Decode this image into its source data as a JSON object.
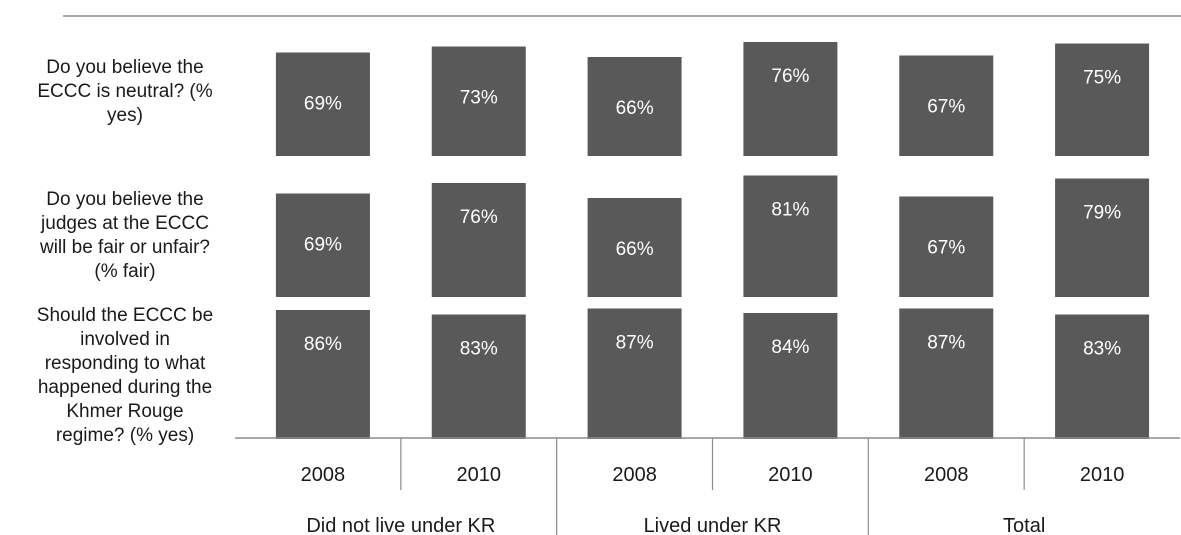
{
  "chart_data": {
    "type": "bar",
    "rows": [
      {
        "label_lines": [
          "Do you believe the",
          "ECCC is neutral? (%",
          "yes)"
        ],
        "values": [
          69,
          73,
          66,
          76,
          67,
          75
        ],
        "value_labels": [
          "69%",
          "73%",
          "66%",
          "76%",
          "67%",
          "75%"
        ]
      },
      {
        "label_lines": [
          "Do you believe the",
          "judges at the ECCC",
          "will be fair or unfair?",
          "(% fair)"
        ],
        "values": [
          69,
          76,
          66,
          81,
          67,
          79
        ],
        "value_labels": [
          "69%",
          "76%",
          "66%",
          "81%",
          "67%",
          "79%"
        ]
      },
      {
        "label_lines": [
          "Should the ECCC be",
          "involved in",
          "responding to what",
          "happened during the",
          "Khmer Rouge",
          "regime? (% yes)"
        ],
        "values": [
          86,
          83,
          87,
          84,
          87,
          83
        ],
        "value_labels": [
          "86%",
          "83%",
          "87%",
          "84%",
          "87%",
          "83%"
        ]
      }
    ],
    "categories": [
      "2008",
      "2010",
      "2008",
      "2010",
      "2008",
      "2010"
    ],
    "groups": [
      "Did not live under KR",
      "Lived under KR",
      "Total"
    ],
    "colors": {
      "bar": "#595959",
      "axis": "#8c8c8c",
      "bar_text": "#ffffff"
    }
  }
}
